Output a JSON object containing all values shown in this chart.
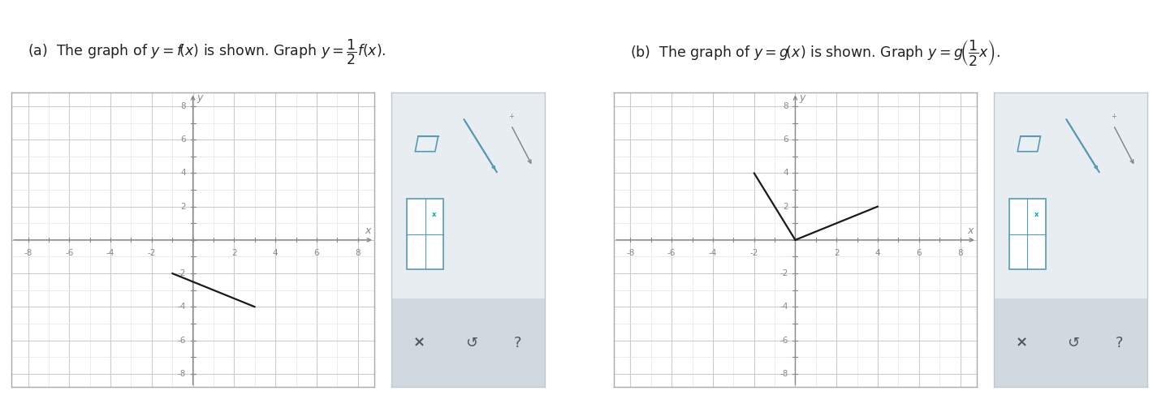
{
  "graph_a_segments": [
    [
      [
        -1,
        -2
      ],
      [
        3,
        -4
      ]
    ]
  ],
  "graph_b_segments": [
    [
      [
        -2,
        4
      ],
      [
        0,
        0
      ]
    ],
    [
      [
        0,
        0
      ],
      [
        4,
        2
      ]
    ]
  ],
  "xlim": [
    -8.8,
    8.8
  ],
  "ylim": [
    -8.8,
    8.8
  ],
  "xticks": [
    -8,
    -6,
    -4,
    -2,
    2,
    4,
    6,
    8
  ],
  "yticks": [
    -8,
    -6,
    -4,
    -2,
    2,
    4,
    6,
    8
  ],
  "axis_color": "#888888",
  "grid_color_major": "#cccccc",
  "grid_color_minor": "#e4e4e4",
  "line_color": "#1a1a1a",
  "background_color": "#ffffff",
  "graph_bg": "#ffffff",
  "graph_border": "#aaaaaa",
  "panel_bg": "#e8edf2",
  "panel_border": "#c0c8d0",
  "panel_bottom_bg": "#d0d8e0",
  "icon_color": "#5a9ab0",
  "icon_color2": "#4a8090",
  "tick_fontsize": 7.5,
  "axis_label_fontsize": 9,
  "title_fontsize": 12.5
}
